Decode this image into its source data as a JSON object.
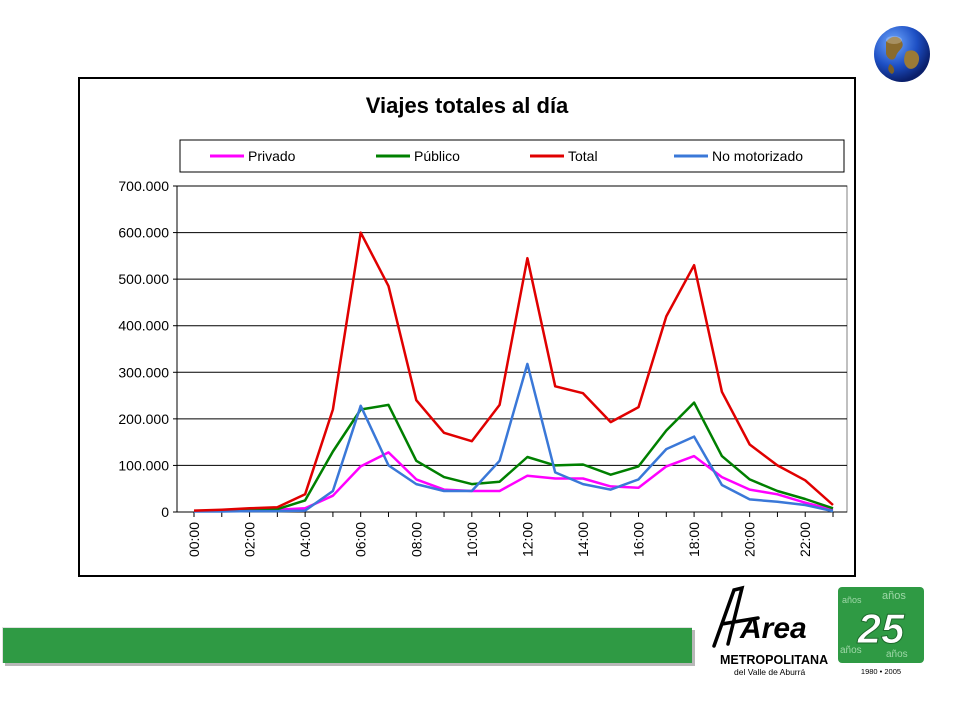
{
  "chart_data": {
    "type": "line",
    "title": "Viajes totales al día",
    "x": [
      "00:00",
      "01:00",
      "02:00",
      "03:00",
      "04:00",
      "05:00",
      "06:00",
      "07:00",
      "08:00",
      "09:00",
      "10:00",
      "11:00",
      "12:00",
      "13:00",
      "14:00",
      "15:00",
      "16:00",
      "17:00",
      "18:00",
      "19:00",
      "20:00",
      "21:00",
      "22:00",
      "23:00"
    ],
    "x_tick_labels": [
      "00:00",
      "02:00",
      "04:00",
      "06:00",
      "08:00",
      "10:00",
      "12:00",
      "14:00",
      "16:00",
      "18:00",
      "20:00",
      "22:00"
    ],
    "ylim": [
      0,
      700000
    ],
    "y_tick_labels": [
      "0",
      "100.000",
      "200.000",
      "300.000",
      "400.000",
      "500.000",
      "600.000",
      "700.000"
    ],
    "y_ticks": [
      0,
      100000,
      200000,
      300000,
      400000,
      500000,
      600000,
      700000
    ],
    "grid": true,
    "legend_placement": "top",
    "series": [
      {
        "name": "Privado",
        "color": "#ff00ff",
        "values": [
          2000,
          3000,
          4000,
          5000,
          8000,
          35000,
          98000,
          128000,
          70000,
          48000,
          45000,
          45000,
          78000,
          72000,
          72000,
          55000,
          52000,
          98000,
          120000,
          75000,
          48000,
          38000,
          20000,
          5000
        ]
      },
      {
        "name": "Público",
        "color": "#008000",
        "values": [
          2000,
          3000,
          5000,
          6000,
          25000,
          130000,
          220000,
          230000,
          110000,
          75000,
          60000,
          65000,
          118000,
          100000,
          102000,
          80000,
          98000,
          175000,
          235000,
          120000,
          70000,
          45000,
          28000,
          8000
        ]
      },
      {
        "name": "Total",
        "color": "#e00000",
        "values": [
          3000,
          5000,
          8000,
          10000,
          38000,
          220000,
          600000,
          485000,
          240000,
          170000,
          152000,
          230000,
          545000,
          270000,
          255000,
          193000,
          225000,
          420000,
          530000,
          258000,
          145000,
          100000,
          68000,
          15000
        ]
      },
      {
        "name": "No motorizado",
        "color": "#3a78d8",
        "values": [
          1000,
          1000,
          2000,
          2000,
          3000,
          45000,
          228000,
          100000,
          60000,
          45000,
          45000,
          110000,
          318000,
          85000,
          60000,
          48000,
          70000,
          135000,
          162000,
          58000,
          27000,
          22000,
          15000,
          2000
        ]
      }
    ]
  },
  "logos": {
    "globe": "globe-icon",
    "area_word": "Area",
    "metropolitana": "METROPOLITANA",
    "valle": "del Valle de Aburrá",
    "anniversary_number": "25",
    "years_word": "años",
    "years_range": "1980 • 2005",
    "brand_green": "#2f9a44"
  }
}
